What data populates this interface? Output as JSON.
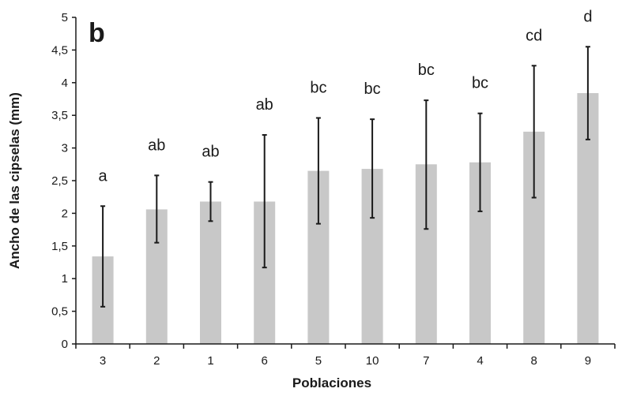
{
  "chart_data": {
    "type": "bar",
    "panel_label": "b",
    "xlabel": "Poblaciones",
    "ylabel": "Ancho de las cipselas (mm)",
    "categories": [
      "3",
      "2",
      "1",
      "6",
      "5",
      "10",
      "7",
      "4",
      "8",
      "9"
    ],
    "values": [
      1.34,
      2.06,
      2.18,
      2.18,
      2.65,
      2.68,
      2.75,
      2.78,
      3.25,
      3.84
    ],
    "error_low": [
      0.57,
      1.55,
      1.88,
      1.17,
      1.84,
      1.93,
      1.76,
      2.03,
      2.24,
      3.13
    ],
    "error_high": [
      2.11,
      2.58,
      2.48,
      3.2,
      3.46,
      3.44,
      3.73,
      3.53,
      4.26,
      4.55
    ],
    "significance": [
      "a",
      "ab",
      "ab",
      "ab",
      "bc",
      "bc",
      "bc",
      "bc",
      "cd",
      "d"
    ],
    "ylim": [
      0,
      5
    ],
    "yticks": [
      0,
      0.5,
      1,
      1.5,
      2,
      2.5,
      3,
      3.5,
      4,
      4.5,
      5
    ],
    "ytick_labels": [
      "0",
      "0,5",
      "1",
      "1,5",
      "2",
      "2,5",
      "3",
      "3,5",
      "4",
      "4,5",
      "5"
    ],
    "grid": false,
    "bar_color": "#c8c8c8",
    "axis_color": "#1a1a1a"
  }
}
